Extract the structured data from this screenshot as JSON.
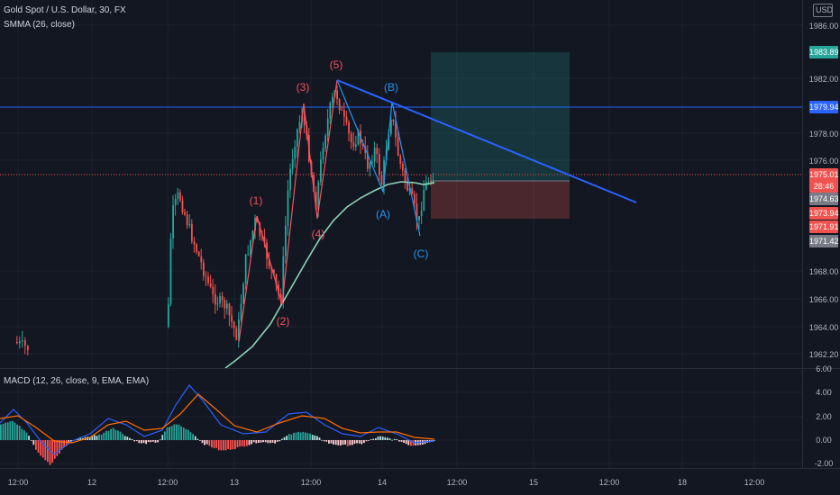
{
  "legend": {
    "symbol": "Gold Spot / U.S. Dollar, 30, FX",
    "indicator": "SMMA (26, close)",
    "macd": "MACD (12, 26, close, 9, EMA, EMA)"
  },
  "axis": {
    "currency": "USD",
    "price_ticks": [
      "1986.00",
      "1982.00",
      "1978.00",
      "1976.00",
      "1968.00",
      "1966.00",
      "1964.00",
      "1962.20"
    ],
    "macd_ticks": [
      "6.00",
      "4.00",
      "2.00",
      "0.00",
      "-2.00"
    ],
    "time_ticks": [
      "12:00",
      "12",
      "12:00",
      "13",
      "12:00",
      "14",
      "12:00",
      "15",
      "12:00",
      "18",
      "12:00"
    ]
  },
  "price_tags": {
    "target": "1983.89",
    "hline": "1979.94",
    "last": "1975.01",
    "countdown": "28:46",
    "smma": "1974.63",
    "stop1": "1973.94",
    "stop2": "1971.91",
    "low": "1971.42"
  },
  "waves": {
    "w1": "(1)",
    "w2": "(2)",
    "w3": "(3)",
    "w4": "(4)",
    "w5": "(5)",
    "wa": "(A)",
    "wb": "(B)",
    "wc": "(C)"
  },
  "colors": {
    "background": "#131722",
    "up": "#26a69a",
    "down": "#ef5350",
    "smma": "#8bd3b5",
    "trendline": "#2962ff",
    "wave_impulse": "#f7525f",
    "wave_correction": "#2196f3",
    "macd_line": "#2962ff",
    "signal_line": "#ff6d00"
  },
  "chart_data": {
    "type": "candlestick",
    "symbol": "XAUUSD",
    "timeframe": "30",
    "price_range": [
      1961,
      1987
    ],
    "current_price": 1975.01,
    "horizontal_line": 1979.94,
    "long_position": {
      "entry": 1975.01,
      "target": 1983.89,
      "stop": 1972.8
    },
    "macd_range": [
      -2.5,
      6.5
    ]
  }
}
